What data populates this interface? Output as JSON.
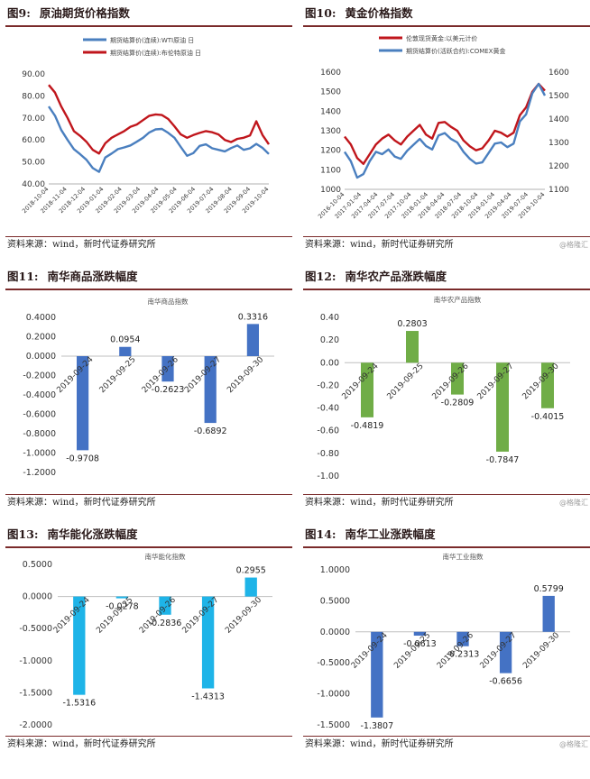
{
  "panels": [
    {
      "fig": "图9:",
      "name": "原油期货价格指数",
      "source": "资料来源：wind，新时代证券研究所",
      "watermark": ""
    },
    {
      "fig": "图10:",
      "name": "黄金价格指数",
      "source": "资料来源：wind，新时代证券研究所",
      "watermark": "@格隆汇"
    },
    {
      "fig": "图11:",
      "name": "南华商品涨跌幅度",
      "source": "资料来源：wind，新时代证券研究所",
      "watermark": ""
    },
    {
      "fig": "图12:",
      "name": "南华农产品涨跌幅度",
      "source": "资料来源：wind，新时代证券研究所",
      "watermark": "@格隆汇"
    },
    {
      "fig": "图13:",
      "name": "南华能化涨跌幅度",
      "source": "资料来源：wind，新时代证券研究所",
      "watermark": ""
    },
    {
      "fig": "图14:",
      "name": "南华工业涨跌幅度",
      "source": "资料来源：wind，新时代证券研究所",
      "watermark": "@格隆汇"
    }
  ],
  "chart_data": [
    {
      "type": "line",
      "title": "",
      "x_ticks": [
        "2018-10-04",
        "2018-11-04",
        "2018-12-04",
        "2019-01-04",
        "2019-02-04",
        "2019-03-04",
        "2019-04-04",
        "2019-05-04",
        "2019-06-04",
        "2019-07-04",
        "2019-08-04",
        "2019-09-04",
        "2019-10-04"
      ],
      "ylim": [
        40,
        90
      ],
      "y_ticks": [
        "90.00",
        "80.00",
        "70.00",
        "60.00",
        "50.00",
        "40.00"
      ],
      "legend_position": "top",
      "series": [
        {
          "name": "期货结算价(连续):WTI原油 日",
          "color": "#4a7fbf",
          "values": [
            75.2,
            71.0,
            64.5,
            60.0,
            55.8,
            53.5,
            51.0,
            47.2,
            45.5,
            52.0,
            53.8,
            55.8,
            56.6,
            57.5,
            59.2,
            61.0,
            63.4,
            64.8,
            65.0,
            63.2,
            61.0,
            56.8,
            52.8,
            54.0,
            57.3,
            58.0,
            56.2,
            55.5,
            54.8,
            56.3,
            57.5,
            55.5,
            56.2,
            58.2,
            56.4,
            53.6
          ]
        },
        {
          "name": "期货结算价(连续):布伦特原油 日",
          "color": "#c0161c",
          "values": [
            85.0,
            81.5,
            75.2,
            70.0,
            64.0,
            61.8,
            59.2,
            55.5,
            53.8,
            58.5,
            61.0,
            62.5,
            64.0,
            66.0,
            67.0,
            69.0,
            71.0,
            71.6,
            71.3,
            69.5,
            66.2,
            62.5,
            61.0,
            62.2,
            63.2,
            64.0,
            63.5,
            62.5,
            60.0,
            59.0,
            60.5,
            61.0,
            62.0,
            68.5,
            62.2,
            58.0
          ]
        }
      ]
    },
    {
      "type": "line",
      "title": "",
      "x_ticks": [
        "2016-10-04",
        "2017-01-04",
        "2017-04-04",
        "2017-07-04",
        "2017-10-04",
        "2018-01-04",
        "2018-04-04",
        "2018-07-04",
        "2018-10-04",
        "2019-01-04",
        "2019-04-04",
        "2019-07-04",
        "2019-10-04"
      ],
      "ylim_left": [
        1000,
        1600
      ],
      "ylim_right": [
        1100,
        1600
      ],
      "y_ticks_left": [
        "1600",
        "1500",
        "1400",
        "1300",
        "1200",
        "1100",
        "1000"
      ],
      "y_ticks_right": [
        "1600",
        "1500",
        "1400",
        "1300",
        "1200",
        "1100"
      ],
      "legend_position": "top",
      "series": [
        {
          "name": "伦敦现货黄金:以美元计价",
          "color": "#c0161c",
          "axis": "left",
          "values": [
            1270,
            1230,
            1160,
            1130,
            1180,
            1230,
            1260,
            1280,
            1250,
            1230,
            1270,
            1300,
            1330,
            1280,
            1260,
            1340,
            1345,
            1320,
            1300,
            1250,
            1220,
            1200,
            1210,
            1250,
            1300,
            1290,
            1270,
            1290,
            1380,
            1420,
            1500,
            1540,
            1505
          ]
        },
        {
          "name": "期货结算价(活跃合约):COMEX黄金",
          "color": "#4a7fbf",
          "axis": "right",
          "values": [
            1260,
            1220,
            1150,
            1165,
            1220,
            1260,
            1250,
            1270,
            1240,
            1230,
            1265,
            1290,
            1315,
            1285,
            1270,
            1330,
            1340,
            1315,
            1300,
            1260,
            1230,
            1210,
            1215,
            1255,
            1295,
            1300,
            1280,
            1295,
            1390,
            1420,
            1510,
            1550,
            1500
          ]
        }
      ]
    },
    {
      "type": "bar",
      "title": "南华商品指数",
      "color": "#4472c4",
      "categories": [
        "2019-09-24",
        "2019-09-25",
        "2019-09-26",
        "2019-09-27",
        "2019-09-30"
      ],
      "values": [
        -0.9708,
        0.0954,
        -0.2623,
        -0.6892,
        0.3316
      ],
      "value_labels": [
        "-0.9708",
        "0.0954",
        "-0.2623",
        "-0.6892",
        "0.3316"
      ],
      "ylim": [
        -1.2,
        0.4
      ],
      "y_ticks": [
        "0.4000",
        "0.2000",
        "0.0000",
        "-0.2000",
        "-0.4000",
        "-0.6000",
        "-0.8000",
        "-1.0000",
        "-1.2000"
      ]
    },
    {
      "type": "bar",
      "title": "南华农产品指数",
      "color": "#70ad47",
      "categories": [
        "2019-09-24",
        "2019-09-25",
        "2019-09-26",
        "2019-09-27",
        "2019-09-30"
      ],
      "values": [
        -0.4819,
        0.2803,
        -0.2809,
        -0.7847,
        -0.4015
      ],
      "value_labels": [
        "-0.4819",
        "0.2803",
        "-0.2809",
        "-0.7847",
        "-0.4015"
      ],
      "ylim": [
        -1.0,
        0.4
      ],
      "y_ticks": [
        "0.40",
        "0.20",
        "0.00",
        "-0.20",
        "-0.40",
        "-0.60",
        "-0.80",
        "-1.00"
      ]
    },
    {
      "type": "bar",
      "title": "南华能化指数",
      "color": "#1eb4e8",
      "categories": [
        "2019-09-24",
        "2019-09-25",
        "2019-09-26",
        "2019-09-27",
        "2019-09-30"
      ],
      "values": [
        -1.5316,
        -0.0278,
        -0.2836,
        -1.4313,
        0.2955
      ],
      "value_labels": [
        "-1.5316",
        "-0.0278",
        "-0.2836",
        "-1.4313",
        "0.2955"
      ],
      "ylim": [
        -2.0,
        0.5
      ],
      "y_ticks": [
        "0.5000",
        "0.0000",
        "-0.5000",
        "-1.0000",
        "-1.5000",
        "-2.0000"
      ]
    },
    {
      "type": "bar",
      "title": "南华工业指数",
      "color": "#4472c4",
      "categories": [
        "2019-09-24",
        "2019-09-25",
        "2019-09-26",
        "2019-09-27",
        "2019-09-30"
      ],
      "values": [
        -1.3807,
        -0.0613,
        -0.2313,
        -0.6656,
        0.5799
      ],
      "value_labels": [
        "-1.3807",
        "-0.0613",
        "-0.2313",
        "-0.6656",
        "0.5799"
      ],
      "ylim": [
        -1.5,
        1.0
      ],
      "y_ticks": [
        "1.0000",
        "0.5000",
        "0.0000",
        "-0.5000",
        "-1.0000",
        "-1.5000"
      ]
    }
  ]
}
